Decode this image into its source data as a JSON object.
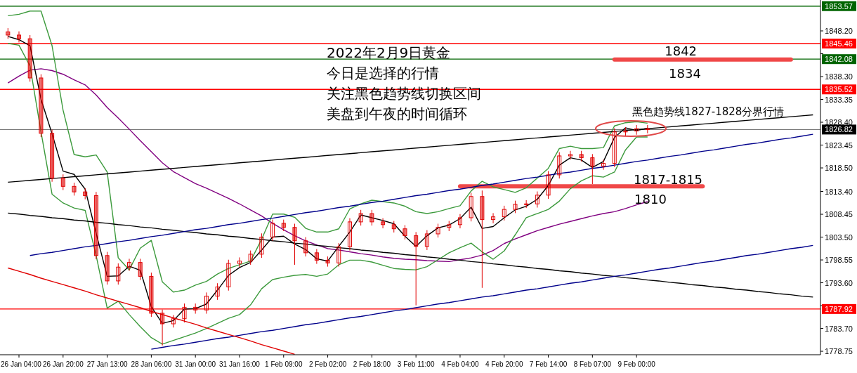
{
  "chart_data": {
    "type": "candlestick",
    "title": "2022年2月9日黄金",
    "annotations": [
      "今日是选择的行情",
      "关注黑色趋势线切换区间",
      "美盘到午夜的时间循环",
      {
        "text": "1842",
        "x": "9 Feb 00:00",
        "y": 1842.0
      },
      "1834",
      "黑色趋势线1827-1828分界行情",
      "1817-1815",
      "1810"
    ],
    "ylim": [
      1778.0,
      1854.9
    ],
    "categories": [
      null,
      "26 Jan 04:00",
      null,
      null,
      null,
      "26 Jan 20:00",
      null,
      null,
      null,
      "27 Jan 13:00",
      null,
      null,
      null,
      "28 Jan 06:00",
      null,
      null,
      null,
      "31 Jan 00:00",
      null,
      null,
      null,
      "31 Jan 16:00",
      null,
      null,
      null,
      "1 Feb 09:00",
      null,
      null,
      null,
      "2 Feb 02:00",
      null,
      null,
      null,
      "2 Feb 18:00",
      null,
      null,
      null,
      "3 Feb 11:00",
      null,
      null,
      null,
      "4 Feb 04:00",
      null,
      null,
      null,
      "4 Feb 20:00",
      null,
      null,
      null,
      "7 Feb 14:00",
      null,
      null,
      null,
      "8 Feb 07:00",
      null,
      null,
      null,
      "9 Feb 00:00",
      null,
      null,
      null,
      null,
      null,
      null,
      null,
      null,
      null,
      null,
      null,
      null,
      null,
      null,
      null,
      null
    ],
    "yticks": [
      {
        "value": 1848.2,
        "label": "1848.20"
      },
      {
        "value": 1843.25,
        "label": null
      },
      {
        "value": 1838.3,
        "label": "1838.30"
      },
      {
        "value": 1833.35,
        "label": "1833.35"
      },
      {
        "value": 1828.4,
        "label": "1828.40"
      },
      {
        "value": 1823.45,
        "label": "1823.45"
      },
      {
        "value": 1818.5,
        "label": "1818.50"
      },
      {
        "value": 1813.4,
        "label": "1813.40"
      },
      {
        "value": 1808.45,
        "label": "1808.45"
      },
      {
        "value": 1803.5,
        "label": "1803.50"
      },
      {
        "value": 1798.55,
        "label": "1798.55"
      },
      {
        "value": 1793.6,
        "label": "1793.60"
      },
      {
        "value": 1788.65,
        "label": null
      },
      {
        "value": 1783.7,
        "label": "1783.70"
      },
      {
        "value": 1778.75,
        "label": "1778.75"
      }
    ],
    "ref_lines": [
      {
        "axis": "y",
        "value": 1853.57,
        "label": "1853.57",
        "color": "#006400"
      },
      {
        "axis": "y",
        "value": 1845.46,
        "label": "1845.46",
        "color": "#ff0000"
      },
      {
        "axis": "y",
        "value": 1842.08,
        "label": "1842.08",
        "color": "#006400"
      },
      {
        "axis": "y",
        "value": 1835.52,
        "label": "1835.52",
        "color": "#ff0000"
      },
      {
        "axis": "y",
        "value": 1826.82,
        "label": "1826.82",
        "color": "#000000"
      },
      {
        "axis": "y",
        "value": 1787.92,
        "label": "1787.92",
        "color": "#ff0000"
      }
    ],
    "color": "#e00000",
    "ohlc": [
      [
        1848.0,
        1848.8,
        1846.5,
        1847.3
      ],
      [
        1847.3,
        1848.1,
        1845.7,
        1846.5
      ],
      [
        1846.5,
        1847.3,
        1837.2,
        1838.0
      ],
      [
        1838.0,
        1838.8,
        1825.2,
        1826.0
      ],
      [
        1826.0,
        1826.8,
        1815.5,
        1816.3
      ],
      [
        1816.3,
        1817.1,
        1813.7,
        1814.5
      ],
      [
        1814.5,
        1815.3,
        1812.5,
        1813.3
      ],
      [
        1813.3,
        1814.1,
        1811.7,
        1812.5
      ],
      [
        1812.5,
        1813.3,
        1798.7,
        1799.5
      ],
      [
        1799.5,
        1800.3,
        1793.2,
        1794.0
      ],
      [
        1794.0,
        1797.8,
        1793.2,
        1797.0
      ],
      [
        1797.0,
        1798.8,
        1796.2,
        1798.0
      ],
      [
        1798.0,
        1798.8,
        1794.2,
        1795.0
      ],
      [
        1795.0,
        1795.8,
        1786.2,
        1787.0
      ],
      [
        1787.0,
        1787.8,
        1780.0,
        1784.7
      ],
      [
        1784.7,
        1786.6,
        1783.9,
        1785.8
      ],
      [
        1785.8,
        1789.1,
        1785.0,
        1788.3
      ],
      [
        1788.3,
        1789.1,
        1786.9,
        1787.7
      ],
      [
        1787.7,
        1791.5,
        1786.9,
        1790.7
      ],
      [
        1790.7,
        1793.5,
        1789.9,
        1792.7
      ],
      [
        1792.7,
        1798.6,
        1791.9,
        1797.8
      ],
      [
        1797.8,
        1799.1,
        1797.0,
        1798.3
      ],
      [
        1798.3,
        1800.6,
        1797.5,
        1799.8
      ],
      [
        1799.8,
        1804.3,
        1799.0,
        1803.5
      ],
      [
        1803.5,
        1807.3,
        1802.7,
        1806.5
      ],
      [
        1806.5,
        1807.3,
        1804.8,
        1805.6
      ],
      [
        1805.6,
        1806.4,
        1797.5,
        1802.7
      ],
      [
        1802.7,
        1803.5,
        1799.3,
        1800.1
      ],
      [
        1800.1,
        1800.9,
        1797.7,
        1798.5
      ],
      [
        1798.5,
        1799.3,
        1797.1,
        1797.9
      ],
      [
        1797.9,
        1802.2,
        1797.1,
        1801.4
      ],
      [
        1801.4,
        1807.6,
        1800.6,
        1806.8
      ],
      [
        1806.8,
        1809.4,
        1806.0,
        1808.6
      ],
      [
        1808.6,
        1809.4,
        1806.0,
        1806.8
      ],
      [
        1806.8,
        1807.6,
        1805.4,
        1806.2
      ],
      [
        1806.2,
        1807.0,
        1804.5,
        1805.3
      ],
      [
        1805.3,
        1806.1,
        1803.0,
        1803.8
      ],
      [
        1803.8,
        1804.6,
        1788.7,
        1801.5
      ],
      [
        1801.5,
        1805.0,
        1800.7,
        1804.2
      ],
      [
        1804.2,
        1806.4,
        1803.4,
        1805.6
      ],
      [
        1805.6,
        1807.0,
        1804.8,
        1806.2
      ],
      [
        1806.2,
        1808.5,
        1805.4,
        1807.7
      ],
      [
        1807.7,
        1813.1,
        1806.9,
        1812.3
      ],
      [
        1812.3,
        1813.6,
        1792.5,
        1807.3
      ],
      [
        1807.3,
        1808.7,
        1806.5,
        1807.9
      ],
      [
        1807.9,
        1810.3,
        1807.1,
        1809.5
      ],
      [
        1809.5,
        1811.4,
        1808.7,
        1810.6
      ],
      [
        1810.6,
        1811.5,
        1809.8,
        1810.7
      ],
      [
        1810.7,
        1813.4,
        1809.9,
        1812.6
      ],
      [
        1812.6,
        1817.8,
        1811.8,
        1817.0
      ],
      [
        1817.0,
        1821.9,
        1816.2,
        1821.1
      ],
      [
        1821.1,
        1822.2,
        1820.3,
        1821.4
      ],
      [
        1821.4,
        1822.2,
        1819.9,
        1820.7
      ],
      [
        1820.7,
        1821.5,
        1815.0,
        1818.9
      ],
      [
        1818.9,
        1820.3,
        1818.1,
        1819.5
      ],
      [
        1819.5,
        1827.1,
        1818.7,
        1826.3
      ],
      [
        1826.3,
        1827.3,
        1825.5,
        1826.5
      ],
      [
        1826.5,
        1827.8,
        1825.7,
        1827.0
      ],
      [
        1827.0,
        1827.8,
        1826.0,
        1826.8
      ],
      null,
      null,
      null,
      null,
      null,
      null,
      null,
      null,
      null,
      null,
      null,
      null,
      null,
      null,
      null
    ],
    "series": [
      {
        "type": "line",
        "color": "#800080",
        "values": [
          1836.9,
          1838.4,
          1839.7,
          1840.0,
          1839.6,
          1838.8,
          1837.6,
          1836.5,
          1834.3,
          1831.6,
          1829.3,
          1826.9,
          1824.4,
          1822.0,
          1819.6,
          1817.7,
          1816.4,
          1815.1,
          1814.1,
          1813.0,
          1811.9,
          1810.7,
          1809.4,
          1808.1,
          1806.5,
          1805.1,
          1803.8,
          1802.7,
          1801.8,
          1801.0,
          1800.7,
          1800.3,
          1799.9,
          1799.6,
          1799.2,
          1798.9,
          1798.7,
          1798.6,
          1798.4,
          1798.3,
          1798.2,
          1798.6,
          1799.0,
          1799.6,
          1800.6,
          1802.1,
          1803.1,
          1804.0,
          1804.9,
          1805.6,
          1806.3,
          1806.9,
          1807.5,
          1808.1,
          1808.6,
          1809.0,
          1809.7,
          1810.5,
          1811.2,
          null,
          null,
          null,
          null,
          null,
          null,
          null,
          null,
          null,
          null,
          null,
          null,
          null,
          null,
          null
        ]
      },
      {
        "type": "line",
        "color": "#3c9a3c",
        "values": [
          1851.5,
          1851.8,
          1852.5,
          1852.5,
          1845.0,
          1831.0,
          1821.4,
          1820.9,
          1821.3,
          1817.6,
          1799.0,
          1796.4,
          1801.1,
          1802.8,
          1793.8,
          1791.6,
          1792.0,
          1793.1,
          1793.9,
          1795.5,
          1796.7,
          1797.5,
          1798.3,
          1803.0,
          1808.5,
          1808.5,
          1807.8,
          1805.4,
          1804.6,
          1804.6,
          1805.3,
          1809.6,
          1810.7,
          1811.5,
          1811.2,
          1810.9,
          1810.2,
          1809.0,
          1808.6,
          1809.0,
          1809.7,
          1810.3,
          1813.5,
          1815.6,
          1814.4,
          1813.8,
          1813.2,
          1814.2,
          1816.3,
          1818.4,
          1822.7,
          1823.2,
          1822.7,
          1822.7,
          1822.9,
          1827.6,
          1828.3,
          1828.5,
          1828.2,
          null,
          null,
          null,
          null,
          null,
          null,
          null,
          null,
          null,
          null,
          null,
          null,
          null,
          null,
          null
        ]
      },
      {
        "type": "line",
        "color": "#3c9a3c",
        "values": [
          1845.5,
          1845.1,
          1840.6,
          1826.3,
          1812.8,
          1810.9,
          1809.8,
          1809.3,
          1799.5,
          1788.1,
          1789.6,
          1786.7,
          1784.1,
          1781.7,
          1780.3,
          1781.1,
          1781.9,
          1782.7,
          1783.7,
          1784.8,
          1785.9,
          1786.7,
          1788.8,
          1792.3,
          1794.3,
          1794.8,
          1795.2,
          1795.4,
          1795.0,
          1795.5,
          1797.5,
          1798.5,
          1798.5,
          1798.1,
          1797.4,
          1796.7,
          1796.5,
          1796.4,
          1797.1,
          1798.6,
          1800.1,
          1801.2,
          1802.2,
          1800.3,
          1798.7,
          1800.5,
          1804.0,
          1807.7,
          1808.6,
          1809.5,
          1811.3,
          1814.0,
          1815.7,
          1816.8,
          1816.5,
          1817.6,
          1822.4,
          1825.2,
          1825.2,
          null,
          null,
          null,
          null,
          null,
          null,
          null,
          null,
          null,
          null,
          null,
          null,
          null,
          null,
          null
        ]
      },
      {
        "type": "line",
        "color": "#000000",
        "values": [
          1847.0,
          1846.3,
          1845.0,
          1833.4,
          1825.9,
          1817.8,
          1817.1,
          1813.9,
          1804.3,
          1795.0,
          1795.1,
          1797.2,
          1796.3,
          1788.4,
          1784.8,
          1785.4,
          1787.9,
          1788.0,
          1789.0,
          1792.0,
          1795.2,
          1796.9,
          1798.0,
          1800.7,
          1803.5,
          1803.7,
          1802.0,
          1800.8,
          1798.8,
          1798.3,
          1801.5,
          1804.6,
          1808.3,
          1807.7,
          1807.1,
          1806.4,
          1803.7,
          1801.5,
          1803.8,
          1805.5,
          1806.1,
          1807.5,
          1810.0,
          1805.4,
          1805.8,
          1807.7,
          1809.4,
          1810.2,
          1811.7,
          1814.7,
          1819.1,
          1820.7,
          1820.2,
          1818.6,
          1819.9,
          1825.1,
          1827.2,
          1826.6,
          1827.1,
          null,
          null,
          null,
          null,
          null,
          null,
          null,
          null,
          null,
          null,
          null,
          null,
          null,
          null,
          null
        ]
      },
      {
        "type": "line",
        "color": "#000000",
        "values": [
          1815.4,
          1815.6,
          1815.8,
          1816.0,
          1816.2,
          1816.4,
          1816.6,
          1816.8,
          1817.0,
          1817.2,
          1817.4,
          1817.6,
          1817.8,
          1818.0,
          1818.2,
          1818.4,
          1818.6,
          1818.8,
          1819.0,
          1819.2,
          1819.4,
          1819.6,
          1819.8,
          1820.0,
          1820.2,
          1820.4,
          1820.6,
          1820.8,
          1821.0,
          1821.2,
          1821.4,
          1821.6,
          1821.8,
          1822.0,
          1822.2,
          1822.4,
          1822.6,
          1822.8,
          1823.0,
          1823.2,
          1823.4,
          1823.6,
          1823.8,
          1824.0,
          1824.2,
          1824.4,
          1824.6,
          1824.8,
          1825.0,
          1825.2,
          1825.4,
          1825.6,
          1825.8,
          1826.0,
          1826.2,
          1826.4,
          1826.6,
          1826.8,
          1827.0,
          1827.2,
          1827.4,
          1827.6,
          1827.8,
          1828.0,
          1828.2,
          1828.4,
          1828.6,
          1828.8,
          1829.0,
          1829.2,
          1829.4,
          1829.6,
          1829.8,
          1830.0
        ]
      },
      {
        "type": "line",
        "color": "#000000",
        "values": [
          1808.7,
          1808.5,
          1808.2,
          1808.0,
          1807.7,
          1807.5,
          1807.2,
          1807.0,
          1806.7,
          1806.5,
          1806.2,
          1806.0,
          1805.7,
          1805.5,
          1805.2,
          1805.0,
          1804.7,
          1804.5,
          1804.2,
          1804.0,
          1803.7,
          1803.5,
          1803.2,
          1803.0,
          1802.7,
          1802.5,
          1802.2,
          1802.0,
          1801.7,
          1801.5,
          1801.2,
          1801.0,
          1800.7,
          1800.5,
          1800.2,
          1800.0,
          1799.7,
          1799.5,
          1799.2,
          1799.0,
          1798.7,
          1798.5,
          1798.2,
          1798.0,
          1797.7,
          1797.5,
          1797.2,
          1797.0,
          1796.7,
          1796.5,
          1796.2,
          1796.0,
          1795.7,
          1795.5,
          1795.2,
          1795.0,
          1794.7,
          1794.5,
          1794.2,
          1794.0,
          1793.7,
          1793.5,
          1793.2,
          1793.0,
          1792.7,
          1792.5,
          1792.2,
          1792.0,
          1791.7,
          1791.5,
          1791.2,
          1791.0,
          1790.7,
          1790.5
        ]
      },
      {
        "type": "line",
        "color": "#00008b",
        "values": [
          null,
          null,
          1799.5,
          1799.9,
          1800.2,
          1800.6,
          1801.0,
          1801.4,
          1801.7,
          1802.1,
          1802.5,
          1802.8,
          1803.2,
          1803.6,
          1803.9,
          1804.3,
          1804.7,
          1805.1,
          1805.4,
          1805.8,
          1806.2,
          1806.5,
          1806.9,
          1807.3,
          1807.6,
          1808.0,
          1808.4,
          1808.8,
          1809.1,
          1809.5,
          1809.9,
          1810.2,
          1810.6,
          1811.0,
          1811.3,
          1811.7,
          1812.1,
          1812.5,
          1812.8,
          1813.2,
          1813.6,
          1813.9,
          1814.3,
          1814.7,
          1815.0,
          1815.4,
          1815.8,
          1816.2,
          1816.5,
          1816.9,
          1817.3,
          1817.6,
          1818.0,
          1818.4,
          1818.7,
          1819.1,
          1819.5,
          1819.9,
          1820.2,
          1820.6,
          1821.0,
          1821.3,
          1821.7,
          1822.1,
          1822.4,
          1822.8,
          1823.2,
          1823.6,
          1823.9,
          1824.3,
          1824.7,
          1825.0,
          1825.4,
          1825.8
        ]
      },
      {
        "type": "line",
        "color": "#00008b",
        "values": [
          null,
          null,
          null,
          null,
          null,
          null,
          null,
          null,
          null,
          null,
          null,
          null,
          null,
          1779.2,
          1779.6,
          1780.0,
          1780.3,
          1780.7,
          1781.1,
          1781.5,
          1781.8,
          1782.2,
          1782.6,
          1783.0,
          1783.3,
          1783.7,
          1784.1,
          1784.5,
          1784.8,
          1785.2,
          1785.6,
          1786.0,
          1786.3,
          1786.7,
          1787.1,
          1787.5,
          1787.8,
          1788.2,
          1788.6,
          1789.0,
          1789.3,
          1789.7,
          1790.1,
          1790.5,
          1790.8,
          1791.2,
          1791.6,
          1792.0,
          1792.3,
          1792.7,
          1793.1,
          1793.5,
          1793.8,
          1794.2,
          1794.6,
          1795.0,
          1795.3,
          1795.7,
          1796.1,
          1796.5,
          1796.8,
          1797.2,
          1797.6,
          1798.0,
          1798.3,
          1798.7,
          1799.1,
          1799.5,
          1799.8,
          1800.2,
          1800.6,
          1801.0,
          1801.3,
          1801.7
        ]
      },
      {
        "type": "line",
        "color": "#e00000",
        "values": [
          1796.8,
          1796.1,
          1795.4,
          1794.6,
          1793.9,
          1793.2,
          1792.5,
          1791.8,
          1791.0,
          1790.3,
          1789.6,
          1788.9,
          1788.2,
          1787.4,
          1786.7,
          1786.0,
          1785.3,
          1784.6,
          1783.8,
          1783.1,
          1782.4,
          1781.7,
          1781.0,
          1780.2,
          1779.5,
          1778.8,
          1778.1,
          null,
          null,
          null,
          null,
          null,
          null,
          null,
          null,
          null,
          null,
          null,
          null,
          null,
          null,
          null,
          null,
          null,
          null,
          null,
          null,
          null,
          null,
          null,
          null,
          null,
          null,
          null,
          null,
          null,
          null,
          null,
          null,
          null,
          null,
          null,
          null,
          null,
          null,
          null,
          null,
          null,
          null,
          null,
          null,
          null,
          null,
          null
        ]
      },
      {
        "type": "line",
        "color": "#f04848",
        "values": [
          null,
          null,
          null,
          null,
          null,
          null,
          null,
          null,
          null,
          null,
          null,
          null,
          null,
          null,
          null,
          null,
          null,
          null,
          null,
          null,
          null,
          null,
          null,
          null,
          null,
          null,
          null,
          null,
          null,
          null,
          null,
          null,
          null,
          null,
          null,
          null,
          null,
          null,
          null,
          null,
          null,
          null,
          null,
          null,
          null,
          null,
          null,
          null,
          null,
          null,
          null,
          null,
          null,
          null,
          null,
          1842.0,
          1842.0,
          1842.0,
          1842.0,
          1842.0,
          1842.0,
          1842.0,
          1842.0,
          1842.0,
          1842.0,
          1842.0,
          1842.0,
          1842.0,
          1842.0,
          1842.0,
          1842.0,
          1842.0,
          null,
          null
        ]
      },
      {
        "type": "line",
        "color": "#f04848",
        "values": [
          null,
          null,
          null,
          null,
          null,
          null,
          null,
          null,
          null,
          null,
          null,
          null,
          null,
          null,
          null,
          null,
          null,
          null,
          null,
          null,
          null,
          null,
          null,
          null,
          null,
          null,
          null,
          null,
          null,
          null,
          null,
          null,
          null,
          null,
          null,
          null,
          null,
          null,
          null,
          null,
          null,
          1814.5,
          1814.5,
          1814.5,
          1814.5,
          1814.5,
          1814.5,
          1814.5,
          1814.5,
          1814.5,
          1814.5,
          1814.5,
          1814.5,
          1814.5,
          1814.5,
          1814.5,
          1814.5,
          1814.5,
          1814.5,
          1814.5,
          1814.5,
          1814.5,
          1814.5,
          1814.5,
          null,
          null,
          null,
          null,
          null,
          null,
          null,
          null,
          null,
          null
        ]
      }
    ]
  }
}
